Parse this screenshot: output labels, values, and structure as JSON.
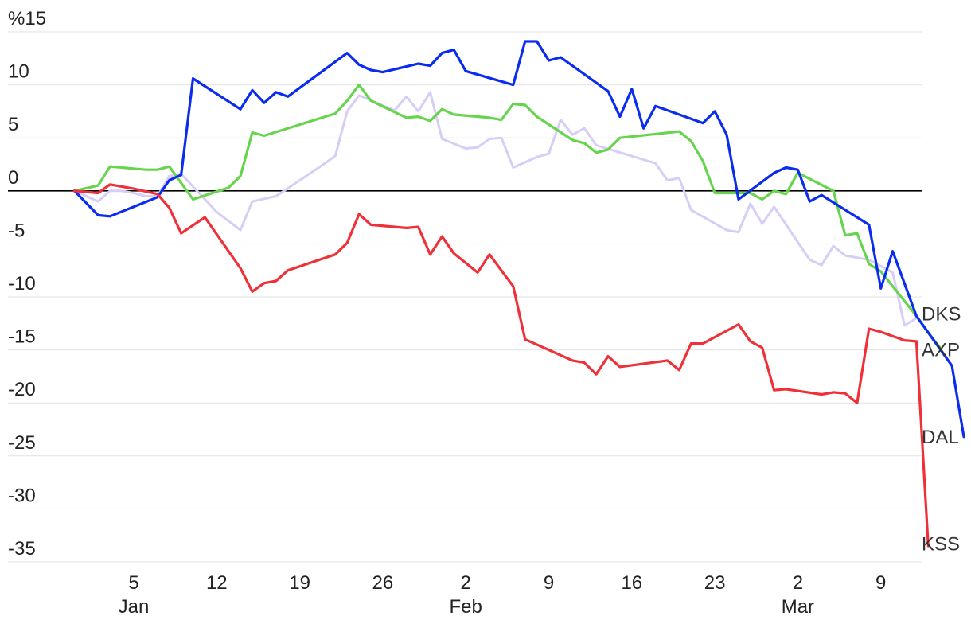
{
  "chart_data": {
    "type": "line",
    "title": "",
    "xlabel": "",
    "ylabel": "",
    "ylim": [
      -35,
      15
    ],
    "y_ticks": [
      {
        "value": 15,
        "label": "%15"
      },
      {
        "value": 10,
        "label": "10"
      },
      {
        "value": 5,
        "label": "5"
      },
      {
        "value": 0,
        "label": "0"
      },
      {
        "value": -5,
        "label": "-5"
      },
      {
        "value": -10,
        "label": "-10"
      },
      {
        "value": -15,
        "label": "-15"
      },
      {
        "value": -20,
        "label": "-20"
      },
      {
        "value": -25,
        "label": "-25"
      },
      {
        "value": -30,
        "label": "-30"
      },
      {
        "value": -35,
        "label": "-35"
      }
    ],
    "x_ticks": [
      {
        "date": "2021-01-05",
        "label": "5",
        "sublabel": "Jan"
      },
      {
        "date": "2021-01-12",
        "label": "12",
        "sublabel": ""
      },
      {
        "date": "2021-01-19",
        "label": "19",
        "sublabel": ""
      },
      {
        "date": "2021-01-26",
        "label": "26",
        "sublabel": ""
      },
      {
        "date": "2021-02-02",
        "label": "2",
        "sublabel": "Feb"
      },
      {
        "date": "2021-02-09",
        "label": "9",
        "sublabel": ""
      },
      {
        "date": "2021-02-16",
        "label": "16",
        "sublabel": ""
      },
      {
        "date": "2021-02-23",
        "label": "23",
        "sublabel": ""
      },
      {
        "date": "2021-03-02",
        "label": "2",
        "sublabel": "Mar"
      },
      {
        "date": "2021-03-09",
        "label": "9",
        "sublabel": ""
      }
    ],
    "grid": true,
    "legend": "end-labels",
    "series": [
      {
        "name": "DKS",
        "color": "#d7cdf7",
        "points": [
          [
            "2020-12-31",
            0
          ],
          [
            "2021-01-01",
            -0.5
          ],
          [
            "2021-01-02",
            -1
          ],
          [
            "2021-01-03",
            0
          ],
          [
            "2021-01-04",
            0
          ],
          [
            "2021-01-05",
            -0.2
          ],
          [
            "2021-01-06",
            -0.5
          ],
          [
            "2021-01-07",
            -0.5
          ],
          [
            "2021-01-08",
            1.4
          ],
          [
            "2021-01-09",
            1.6
          ],
          [
            "2021-01-12",
            -2
          ],
          [
            "2021-01-14",
            -3.7
          ],
          [
            "2021-01-15",
            -1
          ],
          [
            "2021-01-17",
            -0.5
          ],
          [
            "2021-01-21",
            2.5
          ],
          [
            "2021-01-22",
            3.3
          ],
          [
            "2021-01-23",
            7.5
          ],
          [
            "2021-01-24",
            9.0
          ],
          [
            "2021-01-27",
            7.6
          ],
          [
            "2021-01-28",
            8.9
          ],
          [
            "2021-01-29",
            7.5
          ],
          [
            "2021-01-30",
            9.3
          ],
          [
            "2021-01-31",
            4.9
          ],
          [
            "2021-02-02",
            4.0
          ],
          [
            "2021-02-03",
            4.1
          ],
          [
            "2021-02-04",
            4.9
          ],
          [
            "2021-02-05",
            5.0
          ],
          [
            "2021-02-06",
            2.2
          ],
          [
            "2021-02-08",
            3.2
          ],
          [
            "2021-02-09",
            3.5
          ],
          [
            "2021-02-10",
            6.7
          ],
          [
            "2021-02-11",
            5.3
          ],
          [
            "2021-02-12",
            5.9
          ],
          [
            "2021-02-13",
            4.3
          ],
          [
            "2021-02-18",
            2.6
          ],
          [
            "2021-02-19",
            1.0
          ],
          [
            "2021-02-20",
            1.2
          ],
          [
            "2021-02-21",
            -1.8
          ],
          [
            "2021-02-24",
            -3.7
          ],
          [
            "2021-02-25",
            -3.9
          ],
          [
            "2021-02-26",
            -1.2
          ],
          [
            "2021-02-27",
            -3.1
          ],
          [
            "2021-02-28",
            -1.5
          ],
          [
            "2021-03-03",
            -6.5
          ],
          [
            "2021-03-04",
            -7.0
          ],
          [
            "2021-03-05",
            -5.2
          ],
          [
            "2021-03-06",
            -6.1
          ],
          [
            "2021-03-07",
            -6.3
          ],
          [
            "2021-03-08",
            -6.5
          ],
          [
            "2021-03-10",
            -7.7
          ],
          [
            "2021-03-11",
            -12.7
          ],
          [
            "2021-03-12",
            -12.0
          ]
        ]
      },
      {
        "name": "AXP",
        "color": "#66d44c",
        "points": [
          [
            "2020-12-31",
            0
          ],
          [
            "2021-01-02",
            0.5
          ],
          [
            "2021-01-03",
            2.3
          ],
          [
            "2021-01-06",
            2.0
          ],
          [
            "2021-01-07",
            2.0
          ],
          [
            "2021-01-08",
            2.3
          ],
          [
            "2021-01-10",
            -0.8
          ],
          [
            "2021-01-13",
            0.3
          ],
          [
            "2021-01-14",
            1.4
          ],
          [
            "2021-01-15",
            5.5
          ],
          [
            "2021-01-16",
            5.2
          ],
          [
            "2021-01-22",
            7.3
          ],
          [
            "2021-01-23",
            8.5
          ],
          [
            "2021-01-24",
            10.0
          ],
          [
            "2021-01-25",
            8.5
          ],
          [
            "2021-01-28",
            6.9
          ],
          [
            "2021-01-29",
            7.0
          ],
          [
            "2021-01-30",
            6.6
          ],
          [
            "2021-01-31",
            7.7
          ],
          [
            "2021-02-01",
            7.2
          ],
          [
            "2021-02-04",
            6.9
          ],
          [
            "2021-02-05",
            6.7
          ],
          [
            "2021-02-06",
            8.2
          ],
          [
            "2021-02-07",
            8.1
          ],
          [
            "2021-02-08",
            7.0
          ],
          [
            "2021-02-11",
            4.8
          ],
          [
            "2021-02-12",
            4.5
          ],
          [
            "2021-02-13",
            3.6
          ],
          [
            "2021-02-14",
            3.9
          ],
          [
            "2021-02-15",
            5.0
          ],
          [
            "2021-02-20",
            5.6
          ],
          [
            "2021-02-21",
            4.7
          ],
          [
            "2021-02-22",
            2.8
          ],
          [
            "2021-02-23",
            -0.2
          ],
          [
            "2021-02-26",
            -0.2
          ],
          [
            "2021-02-27",
            -0.8
          ],
          [
            "2021-02-28",
            0
          ],
          [
            "2021-03-01",
            -0.3
          ],
          [
            "2021-03-02",
            1.7
          ],
          [
            "2021-03-05",
            0
          ],
          [
            "2021-03-06",
            -4.2
          ],
          [
            "2021-03-07",
            -4.0
          ],
          [
            "2021-03-08",
            -6.9
          ],
          [
            "2021-03-09",
            -7.6
          ],
          [
            "2021-03-12",
            -11.8
          ],
          [
            "2021-03-13",
            -13.4
          ],
          [
            "2021-03-14",
            -14.8
          ]
        ]
      },
      {
        "name": "DAL",
        "color": "#0a2cf0",
        "points": [
          [
            "2020-12-31",
            0
          ],
          [
            "2021-01-02",
            -2.3
          ],
          [
            "2021-01-03",
            -2.4
          ],
          [
            "2021-01-07",
            -0.6
          ],
          [
            "2021-01-08",
            1.0
          ],
          [
            "2021-01-09",
            1.5
          ],
          [
            "2021-01-10",
            10.6
          ],
          [
            "2021-01-14",
            7.7
          ],
          [
            "2021-01-15",
            9.5
          ],
          [
            "2021-01-16",
            8.3
          ],
          [
            "2021-01-17",
            9.3
          ],
          [
            "2021-01-18",
            8.9
          ],
          [
            "2021-01-23",
            13.0
          ],
          [
            "2021-01-24",
            11.9
          ],
          [
            "2021-01-25",
            11.4
          ],
          [
            "2021-01-26",
            11.2
          ],
          [
            "2021-01-29",
            12.0
          ],
          [
            "2021-01-30",
            11.8
          ],
          [
            "2021-01-31",
            13.0
          ],
          [
            "2021-02-01",
            13.3
          ],
          [
            "2021-02-02",
            11.3
          ],
          [
            "2021-02-06",
            10.0
          ],
          [
            "2021-02-07",
            14.1
          ],
          [
            "2021-02-08",
            14.1
          ],
          [
            "2021-02-09",
            12.3
          ],
          [
            "2021-02-10",
            12.6
          ],
          [
            "2021-02-14",
            9.4
          ],
          [
            "2021-02-15",
            7.0
          ],
          [
            "2021-02-16",
            9.6
          ],
          [
            "2021-02-17",
            5.9
          ],
          [
            "2021-02-18",
            8.0
          ],
          [
            "2021-02-22",
            6.4
          ],
          [
            "2021-02-23",
            7.5
          ],
          [
            "2021-02-24",
            5.3
          ],
          [
            "2021-02-25",
            -0.8
          ],
          [
            "2021-02-28",
            1.7
          ],
          [
            "2021-03-01",
            2.2
          ],
          [
            "2021-03-02",
            2.0
          ],
          [
            "2021-03-03",
            -1.0
          ],
          [
            "2021-03-04",
            -0.4
          ],
          [
            "2021-03-08",
            -3.2
          ],
          [
            "2021-03-09",
            -9.2
          ],
          [
            "2021-03-10",
            -5.7
          ],
          [
            "2021-03-12",
            -11.8
          ],
          [
            "2021-03-15",
            -16.5
          ],
          [
            "2021-03-16",
            -23.2
          ]
        ]
      },
      {
        "name": "KSS",
        "color": "#f03038",
        "points": [
          [
            "2020-12-31",
            0
          ],
          [
            "2021-01-02",
            -0.2
          ],
          [
            "2021-01-03",
            0.6
          ],
          [
            "2021-01-05",
            0.2
          ],
          [
            "2021-01-07",
            -0.3
          ],
          [
            "2021-01-08",
            -1.6
          ],
          [
            "2021-01-09",
            -4.0
          ],
          [
            "2021-01-11",
            -2.5
          ],
          [
            "2021-01-14",
            -7.3
          ],
          [
            "2021-01-15",
            -9.5
          ],
          [
            "2021-01-16",
            -8.7
          ],
          [
            "2021-01-17",
            -8.5
          ],
          [
            "2021-01-18",
            -7.5
          ],
          [
            "2021-01-22",
            -6.0
          ],
          [
            "2021-01-23",
            -4.9
          ],
          [
            "2021-01-24",
            -2.2
          ],
          [
            "2021-01-25",
            -3.2
          ],
          [
            "2021-01-28",
            -3.5
          ],
          [
            "2021-01-29",
            -3.4
          ],
          [
            "2021-01-30",
            -6.0
          ],
          [
            "2021-01-31",
            -4.3
          ],
          [
            "2021-02-01",
            -5.9
          ],
          [
            "2021-02-03",
            -7.7
          ],
          [
            "2021-02-04",
            -6.0
          ],
          [
            "2021-02-06",
            -9.0
          ],
          [
            "2021-02-07",
            -14.0
          ],
          [
            "2021-02-11",
            -16.0
          ],
          [
            "2021-02-12",
            -16.2
          ],
          [
            "2021-02-13",
            -17.3
          ],
          [
            "2021-02-14",
            -15.6
          ],
          [
            "2021-02-15",
            -16.6
          ],
          [
            "2021-02-19",
            -16.0
          ],
          [
            "2021-02-20",
            -16.9
          ],
          [
            "2021-02-21",
            -14.4
          ],
          [
            "2021-02-22",
            -14.4
          ],
          [
            "2021-02-25",
            -12.6
          ],
          [
            "2021-02-26",
            -14.2
          ],
          [
            "2021-02-27",
            -14.8
          ],
          [
            "2021-02-28",
            -18.8
          ],
          [
            "2021-03-01",
            -18.7
          ],
          [
            "2021-03-04",
            -19.2
          ],
          [
            "2021-03-05",
            -19.0
          ],
          [
            "2021-03-06",
            -19.1
          ],
          [
            "2021-03-07",
            -20.0
          ],
          [
            "2021-03-08",
            -13.0
          ],
          [
            "2021-03-09",
            -13.3
          ],
          [
            "2021-03-11",
            -14.1
          ],
          [
            "2021-03-12",
            -14.2
          ],
          [
            "2021-03-13",
            -33.5
          ]
        ]
      }
    ],
    "end_labels": [
      {
        "series": "DKS",
        "text": "DKS",
        "value": -11.6
      },
      {
        "series": "AXP",
        "text": "AXP",
        "value": -15.0
      },
      {
        "series": "DAL",
        "text": "DAL",
        "value": -23.2
      },
      {
        "series": "KSS",
        "text": "KSS",
        "value": -33.3
      }
    ]
  }
}
